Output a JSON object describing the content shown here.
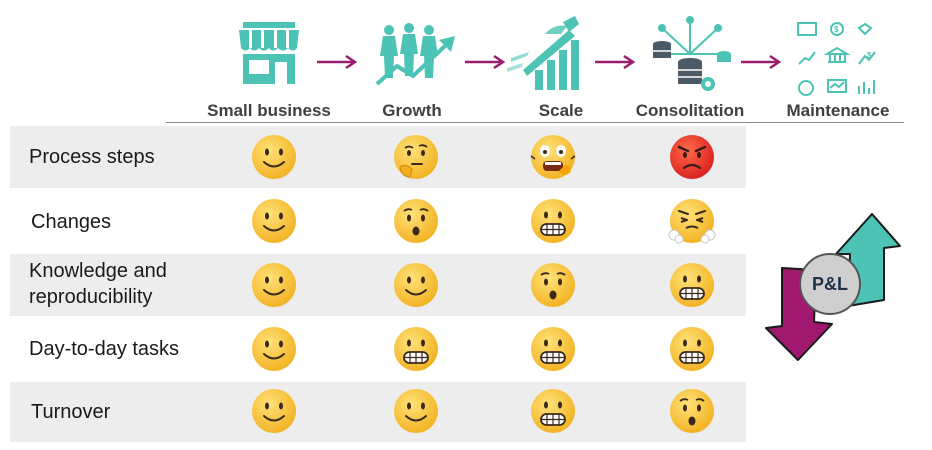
{
  "stages": [
    {
      "label": "Small business",
      "icon": "store-icon"
    },
    {
      "label": "Growth",
      "icon": "people-growth-icon"
    },
    {
      "label": "Scale",
      "icon": "superhero-scale-icon"
    },
    {
      "label": "Consolitation",
      "icon": "database-network-icon"
    },
    {
      "label": "Maintenance",
      "icon": "finance-icons-grid"
    }
  ],
  "rows": [
    {
      "label": "Process steps",
      "moods": [
        "smile",
        "thinking",
        "panic",
        "angry"
      ]
    },
    {
      "label": "Changes",
      "moods": [
        "smile",
        "surprised",
        "grimace",
        "steam"
      ]
    },
    {
      "label": "Knowledge and reproducibility",
      "label_lines": [
        "Knowledge and",
        "reproducibility"
      ],
      "moods": [
        "smile",
        "smile",
        "surprised",
        "grimace"
      ]
    },
    {
      "label": "Day-to-day tasks",
      "moods": [
        "smile",
        "grimace",
        "grimace",
        "grimace"
      ]
    },
    {
      "label": "Turnover",
      "moods": [
        "smile",
        "smile",
        "grimace",
        "surprised"
      ]
    }
  ],
  "pl_badge": "P&L",
  "colors": {
    "teal": "#4cc3b5",
    "magenta": "#a0196e",
    "arrow": "#9b1c6c",
    "label": "#404040",
    "row_shade": "#ededed"
  }
}
